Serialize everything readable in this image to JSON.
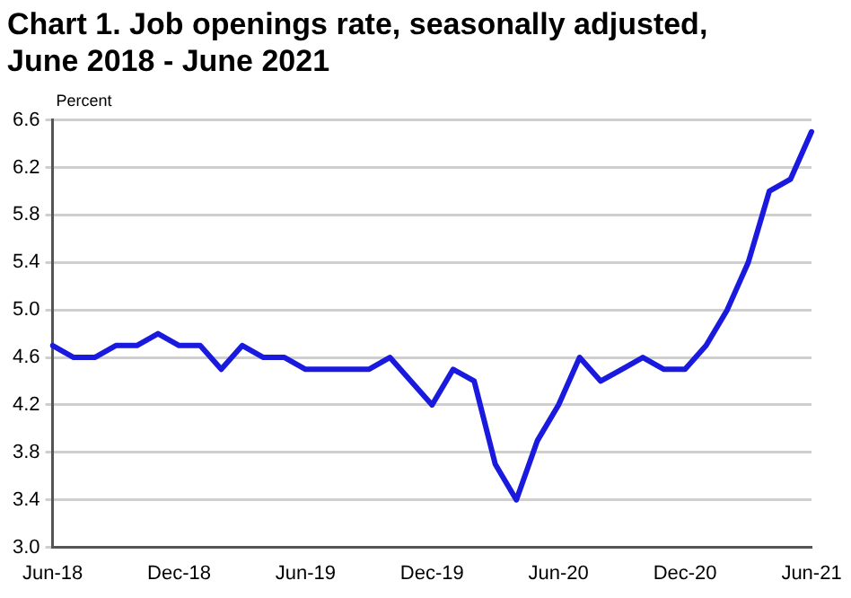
{
  "chart_data": {
    "type": "line",
    "title": "Chart 1. Job openings rate, seasonally adjusted,\nJune 2018 - June 2021",
    "ylabel": "Percent",
    "categories": [
      "Jun-18",
      null,
      null,
      null,
      null,
      null,
      "Dec-18",
      null,
      null,
      null,
      null,
      null,
      "Jun-19",
      null,
      null,
      null,
      null,
      null,
      "Dec-19",
      null,
      null,
      null,
      null,
      null,
      "Jun-20",
      null,
      null,
      null,
      null,
      null,
      "Dec-20",
      null,
      null,
      null,
      null,
      null,
      "Jun-21"
    ],
    "series": [
      {
        "color": "#1a1adf",
        "values": [
          4.7,
          4.6,
          4.6,
          4.7,
          4.7,
          4.8,
          4.7,
          4.7,
          4.5,
          4.7,
          4.6,
          4.6,
          4.5,
          4.5,
          4.5,
          4.5,
          4.6,
          4.4,
          4.2,
          4.5,
          4.4,
          3.7,
          3.4,
          3.9,
          4.2,
          4.6,
          4.4,
          4.5,
          4.6,
          4.5,
          4.5,
          4.7,
          5.0,
          5.4,
          6.0,
          6.1,
          6.5
        ]
      }
    ],
    "ylim": [
      3.0,
      6.6
    ],
    "yticks": [
      {
        "value": 3.0,
        "label": "3.0"
      },
      3.4,
      3.8,
      4.2,
      4.6,
      {
        "value": 5.0,
        "label": "5.0"
      },
      5.4,
      5.8,
      6.2,
      6.6
    ],
    "grid": "y",
    "marker": "none",
    "line_style": "solid",
    "legend": false
  }
}
